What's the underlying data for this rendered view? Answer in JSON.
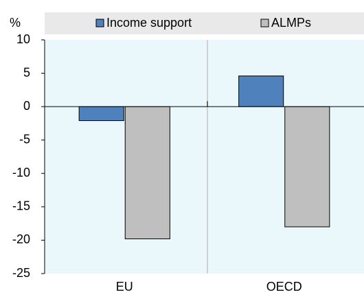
{
  "chart_data": {
    "type": "bar",
    "y_label": "%",
    "categories": [
      "EU",
      "OECD"
    ],
    "series": [
      {
        "name": "Income support",
        "color": "#4f81bd",
        "values": [
          -2.1,
          4.6
        ]
      },
      {
        "name": "ALMPs",
        "color": "#bfbfbf",
        "values": [
          -19.8,
          -18.0
        ]
      }
    ],
    "ylim": [
      -25,
      10
    ],
    "yticks": [
      -25,
      -20,
      -15,
      -10,
      -5,
      0,
      5,
      10
    ],
    "grid": false
  }
}
